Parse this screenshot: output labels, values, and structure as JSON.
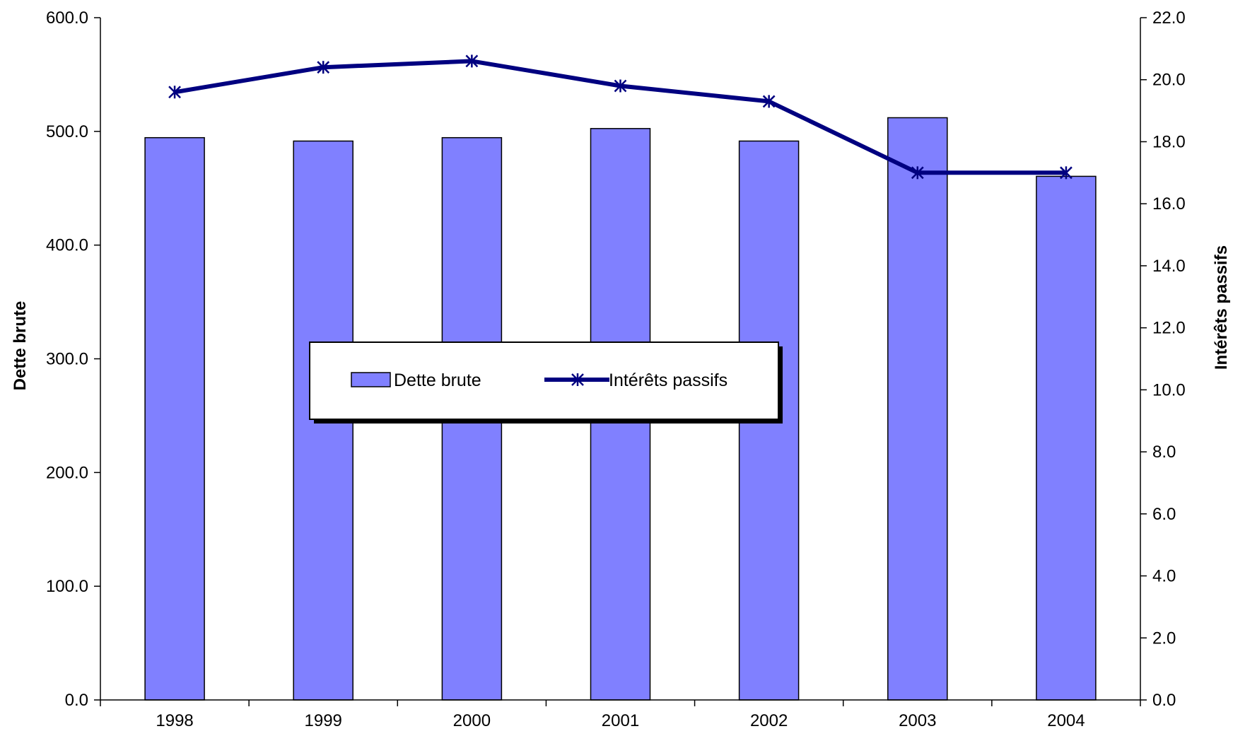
{
  "chart_data": {
    "type": "bar",
    "categories": [
      "1998",
      "1999",
      "2000",
      "2001",
      "2002",
      "2003",
      "2004"
    ],
    "series": [
      {
        "name": "Dette brute",
        "type": "bar",
        "axis": "left",
        "color": "#8080ff",
        "values": [
          494.5,
          491.5,
          494.5,
          502.5,
          491.5,
          512.0,
          460.5
        ]
      },
      {
        "name": "Intérêts passifs",
        "type": "line",
        "axis": "right",
        "color": "#000080",
        "marker": "asterisk",
        "values": [
          19.6,
          20.4,
          20.6,
          19.8,
          19.3,
          17.0,
          17.0
        ]
      }
    ],
    "title": "",
    "xlabel": "",
    "ylabel": "Dette brute",
    "y2label": "Intérêts passifs",
    "ylim": [
      0,
      600
    ],
    "y2lim": [
      0,
      22
    ],
    "yticks": [
      "0.0",
      "100.0",
      "200.0",
      "300.0",
      "400.0",
      "500.0",
      "600.0"
    ],
    "y2ticks": [
      "0.0",
      "2.0",
      "4.0",
      "6.0",
      "8.0",
      "10.0",
      "12.0",
      "14.0",
      "16.0",
      "18.0",
      "20.0",
      "22.0"
    ],
    "grid": false,
    "legend_position": "center"
  }
}
